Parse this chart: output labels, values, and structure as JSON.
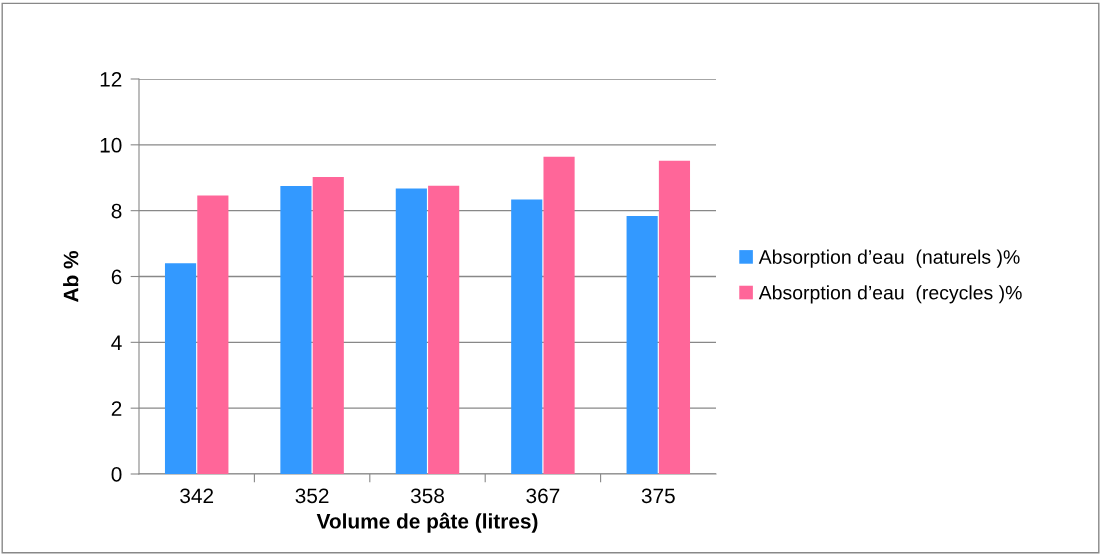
{
  "chart_data": {
    "type": "bar",
    "xlabel": "Volume de pâte (litres)",
    "ylabel": "Ab %",
    "categories": [
      "342",
      "352",
      "358",
      "367",
      "375"
    ],
    "series": [
      {
        "name": "Absorption d’eau  (naturels )%",
        "color": "#3399ff",
        "values": [
          6.4,
          8.75,
          8.67,
          8.34,
          7.84
        ]
      },
      {
        "name": "Absorption d’eau  (recycles )%",
        "color": "#ff6699",
        "values": [
          8.46,
          9.02,
          8.76,
          9.64,
          9.52
        ]
      }
    ],
    "ylim": [
      0,
      12
    ],
    "yticks": [
      0,
      2,
      4,
      6,
      8,
      10,
      12
    ],
    "grid": "y",
    "legend": "right"
  }
}
